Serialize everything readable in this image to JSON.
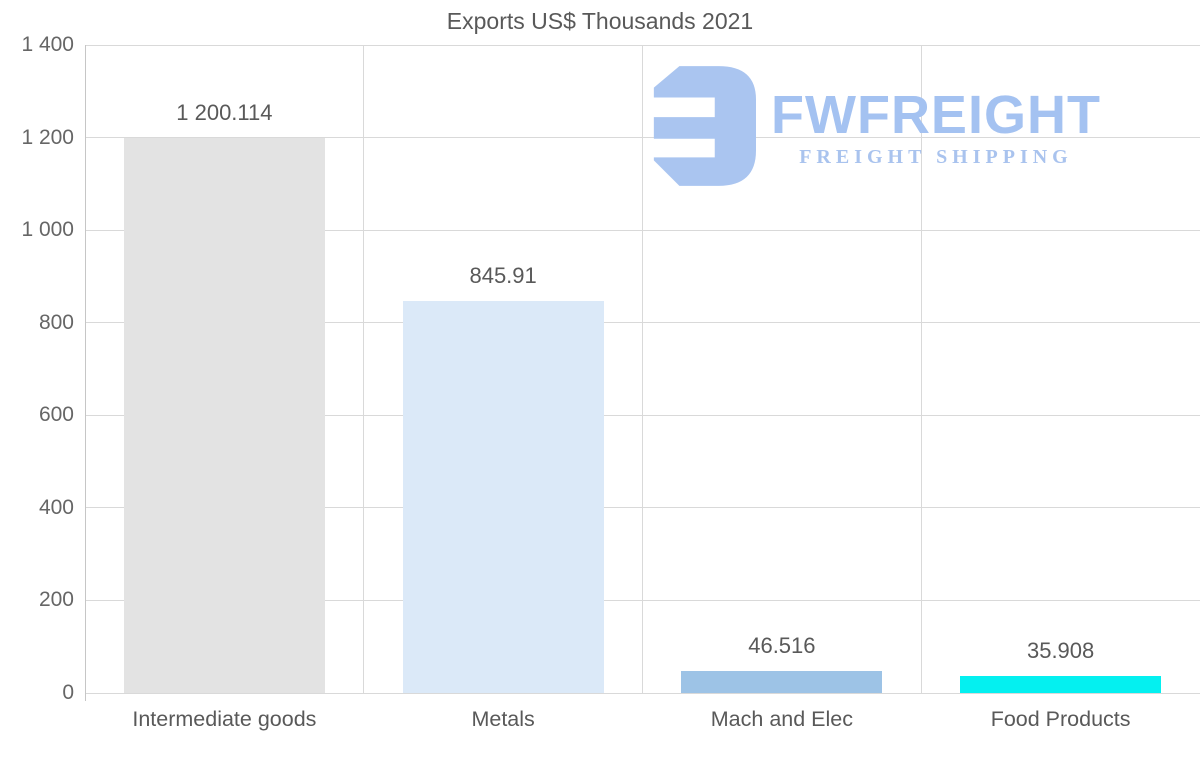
{
  "chart_data": {
    "type": "bar",
    "title": "Exports US$ Thousands 2021",
    "categories": [
      "Intermediate goods",
      "Metals",
      "Mach and Elec",
      "Food Products"
    ],
    "values": [
      1200.114,
      845.91,
      46.516,
      35.908
    ],
    "value_labels": [
      "1 200.114",
      "845.91",
      "46.516",
      "35.908"
    ],
    "bar_colors": [
      "#e3e3e3",
      "#dbe9f8",
      "#9dc3e6",
      "#04f0f0"
    ],
    "xlabel": "",
    "ylabel": "",
    "ylim": [
      0,
      1400
    ],
    "ytick_values": [
      0,
      200,
      400,
      600,
      800,
      1000,
      1200,
      1400
    ],
    "ytick_labels": [
      "0",
      "200",
      "400",
      "600",
      "800",
      "1 000",
      "1 200",
      "1 400"
    ],
    "grid": true,
    "legend": "none",
    "colors": {
      "gridline": "#d9d9d9",
      "axis": "#c6c6c6",
      "text": "#595959"
    }
  },
  "watermark": {
    "brand": "FWFREIGHT",
    "tagline": "FREIGHT SHIPPING",
    "icon": "fwfreight-logo-icon",
    "color": "#a7c3f0"
  }
}
